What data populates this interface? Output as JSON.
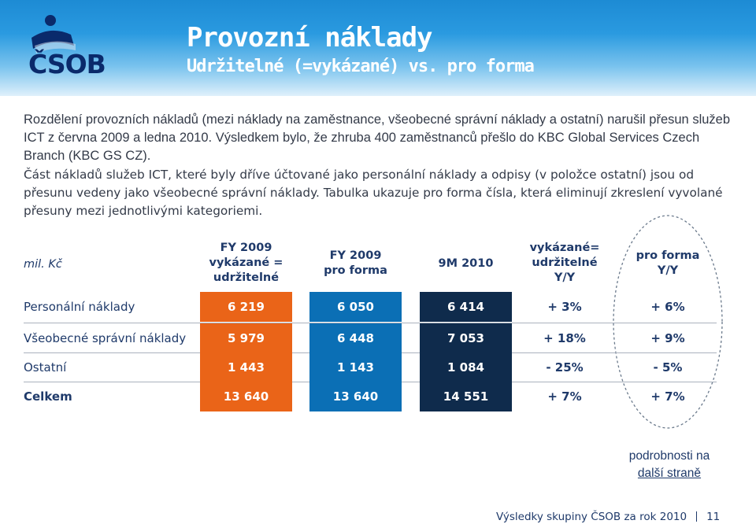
{
  "header": {
    "title": "Provozní náklady",
    "subtitle": "Udržitelné (=vykázané) vs. pro forma",
    "logo_text": "ČSOB"
  },
  "paragraphs": [
    "Rozdělení provozních nákladů (mezi náklady na zaměstnance, všeobecné správní náklady a ostatní) narušil přesun služeb ICT z června 2009 a ledna 2010. Výsledkem bylo, že zhruba 400 zaměstnanců přešlo do KBC Global Services Czech Branch (KBC GS CZ).",
    "Část nákladů služeb ICT, které byly dříve účtované jako personální náklady a odpisy (v položce ostatní) jsou od přesunu vedeny jako všeobecné správní náklady. Tabulka ukazuje pro forma čísla, která eliminují zkreslení vyvolané přesuny mezi jednotlivými kategoriemi."
  ],
  "table": {
    "unit": "mil. Kč",
    "headers": [
      [
        "FY 2009",
        "vykázané =",
        "udržitelné"
      ],
      [
        "FY 2009",
        "pro forma"
      ],
      [
        "9M 2010"
      ],
      [
        "vykázané=",
        "udržitelné",
        "Y/Y"
      ],
      [
        "pro forma",
        "Y/Y"
      ]
    ],
    "rows": [
      {
        "label": "Personální náklady",
        "values": [
          "6 219",
          "6 050",
          "6 414",
          "+ 3%",
          "+ 6%"
        ]
      },
      {
        "label": "Všeobecné správní náklady",
        "values": [
          "5 979",
          "6 448",
          "7 053",
          "+ 18%",
          "+ 9%"
        ]
      },
      {
        "label": "Ostatní",
        "values": [
          "1 443",
          "1 143",
          "1 084",
          "- 25%",
          "- 5%"
        ]
      },
      {
        "label": "Celkem",
        "values": [
          "13 640",
          "13 640",
          "14 551",
          "+ 7%",
          "+ 7%"
        ]
      }
    ]
  },
  "note": {
    "line1": "podrobnosti na",
    "line2": "další straně"
  },
  "footer": {
    "text": "Výsledky skupiny ČSOB za rok 2010",
    "page": "11"
  },
  "colors": {
    "orange": "#ea6418",
    "blue": "#0b6fb5",
    "navy": "#0f2b4c",
    "header_blue": "#1d8bd4"
  }
}
